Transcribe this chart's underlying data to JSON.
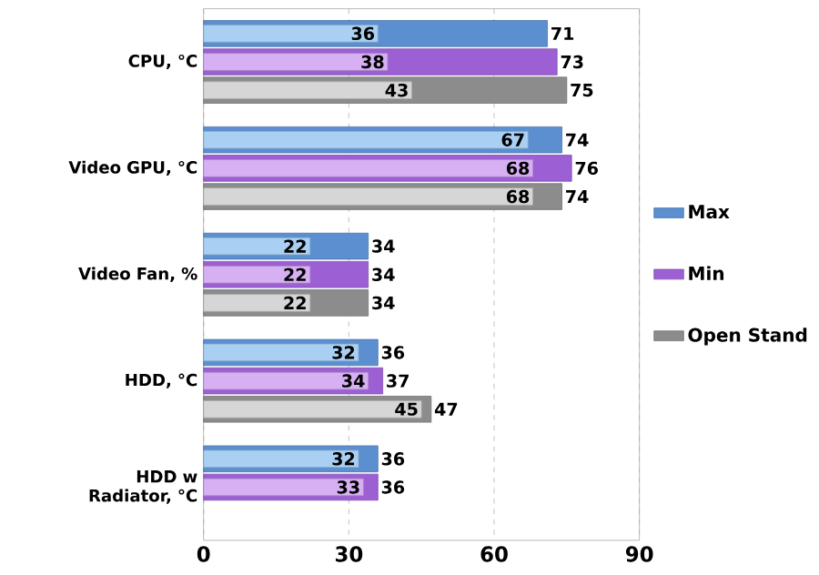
{
  "chart_data": {
    "type": "bar",
    "orientation": "horizontal",
    "categories": [
      "CPU, °C",
      "Video GPU, °C",
      "Video Fan,  %",
      "HDD, °C",
      "HDD w Radiator, °C"
    ],
    "series": [
      {
        "name": "Max",
        "color": "#5b8fd0",
        "values": [
          71,
          74,
          34,
          36,
          36
        ]
      },
      {
        "name": "Min",
        "color": "#9c5fd4",
        "values": [
          73,
          76,
          34,
          37,
          36
        ]
      },
      {
        "name": "Open Stand",
        "color": "#8c8c8c",
        "values": [
          75,
          74,
          34,
          47,
          null
        ]
      },
      {
        "color": "#a9d0f2",
        "values": [
          36,
          67,
          22,
          32,
          32
        ]
      },
      {
        "color": "#d6b0f2",
        "values": [
          38,
          68,
          22,
          34,
          33
        ]
      },
      {
        "color": "#d6d6d6",
        "values": [
          43,
          68,
          22,
          45,
          null
        ]
      }
    ],
    "xlim": [
      0,
      90
    ],
    "xticks": [
      0,
      30,
      60,
      90
    ],
    "grid": "x",
    "legend": "right",
    "data_labels": true
  }
}
